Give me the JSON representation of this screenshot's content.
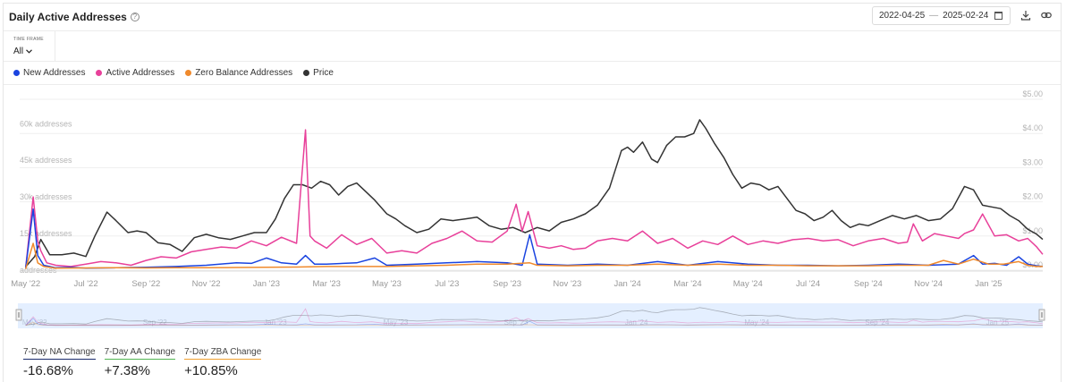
{
  "header": {
    "title": "Daily Active Addresses",
    "help_icon": "help-circle-icon",
    "date_start": "2022-04-25",
    "date_sep": "—",
    "date_end": "2025-02-24",
    "calendar_icon": "calendar-icon",
    "download_icon": "download-icon",
    "link_icon": "link-icon"
  },
  "time_frame": {
    "label": "TIME FRAME",
    "value": "All"
  },
  "legend": [
    {
      "name": "New Addresses",
      "color": "#1a44e0"
    },
    {
      "name": "Active Addresses",
      "color": "#e8409a"
    },
    {
      "name": "Zero Balance Addresses",
      "color": "#f08a2c"
    },
    {
      "name": "Price",
      "color": "#333333"
    }
  ],
  "stats": [
    {
      "label": "7-Day NA Change",
      "value": "-16.68%",
      "color": "#1a2a6c"
    },
    {
      "label": "7-Day AA Change",
      "value": "+7.38%",
      "color": "#52b552"
    },
    {
      "label": "7-Day ZBA Change",
      "value": "+10.85%",
      "color": "#f0a030"
    }
  ],
  "chart_data": {
    "type": "line",
    "title": "Daily Active Addresses",
    "x_tick_labels": [
      "May '22",
      "Jul '22",
      "Sep '22",
      "Nov '22",
      "Jan '23",
      "Mar '23",
      "May '23",
      "Jul '23",
      "Sep '23",
      "Nov '23",
      "Jan '24",
      "Mar '24",
      "May '24",
      "Jul '24",
      "Sep '24",
      "Nov '24",
      "Jan '25"
    ],
    "x_tick_months": [
      0,
      2,
      4,
      6,
      8,
      10,
      12,
      14,
      16,
      18,
      20,
      22,
      24,
      26,
      28,
      30,
      32
    ],
    "x_range_months": [
      -0.2,
      33.8
    ],
    "y_left_ticks": [
      "addresses",
      "15k addresses",
      "30k addresses",
      "45k addresses",
      "60k addresses"
    ],
    "y_left_values": [
      0,
      15000,
      30000,
      45000,
      60000
    ],
    "y_left_range": [
      0,
      70000
    ],
    "y_right_ticks": [
      "$0.00",
      "$1.00",
      "$2.00",
      "$3.00",
      "$4.00",
      "$5.00"
    ],
    "y_right_values": [
      0,
      1,
      2,
      3,
      4,
      5
    ],
    "y_right_range": [
      0,
      5
    ],
    "navigator_tick_labels": [
      "May '22",
      "Sep '22",
      "Jan '23",
      "May '23",
      "Sep '23",
      "Jan '24",
      "May '24",
      "Sep '24",
      "Jan '25"
    ],
    "navigator_tick_months": [
      0,
      4,
      8,
      12,
      16,
      20,
      24,
      28,
      32
    ],
    "series": [
      {
        "name": "Price",
        "axis": "right",
        "color": "#333333",
        "x": [
          0,
          0.3,
          0.5,
          0.8,
          1.2,
          1.6,
          2.0,
          2.3,
          2.7,
          3.0,
          3.4,
          3.7,
          4.0,
          4.4,
          4.8,
          5.2,
          5.6,
          6.0,
          6.4,
          6.8,
          7.2,
          7.6,
          8.0,
          8.3,
          8.6,
          8.9,
          9.2,
          9.5,
          9.8,
          10.1,
          10.4,
          10.7,
          11.0,
          11.3,
          11.6,
          12.0,
          12.3,
          12.6,
          13.0,
          13.4,
          13.8,
          14.2,
          14.6,
          15.0,
          15.4,
          15.8,
          16.2,
          16.6,
          17.0,
          17.4,
          17.8,
          18.2,
          18.6,
          19.0,
          19.4,
          19.8,
          20.0,
          20.2,
          20.5,
          20.8,
          21.0,
          21.3,
          21.6,
          21.9,
          22.2,
          22.4,
          22.6,
          22.9,
          23.2,
          23.5,
          23.8,
          24.1,
          24.4,
          24.7,
          25.0,
          25.3,
          25.6,
          25.9,
          26.2,
          26.5,
          26.8,
          27.1,
          27.4,
          27.7,
          28.0,
          28.4,
          28.8,
          29.2,
          29.6,
          30.0,
          30.4,
          30.8,
          31.2,
          31.5,
          31.8,
          32.1,
          32.4,
          32.7,
          33.0,
          33.3,
          33.6,
          33.8
        ],
        "y": [
          0.1,
          0.4,
          0.9,
          0.45,
          0.45,
          0.5,
          0.4,
          1.0,
          1.7,
          1.45,
          1.1,
          1.15,
          1.1,
          0.8,
          0.75,
          0.55,
          0.95,
          1.05,
          0.95,
          0.9,
          1.0,
          1.1,
          1.1,
          1.5,
          2.1,
          2.5,
          2.5,
          2.4,
          2.6,
          2.5,
          2.2,
          2.45,
          2.55,
          2.3,
          2.05,
          1.65,
          1.5,
          1.3,
          1.1,
          1.2,
          1.5,
          1.45,
          1.5,
          1.55,
          1.3,
          1.2,
          1.25,
          1.1,
          1.25,
          1.15,
          1.4,
          1.5,
          1.65,
          1.9,
          2.4,
          3.5,
          3.6,
          3.45,
          3.75,
          3.25,
          3.15,
          3.65,
          3.9,
          3.9,
          4.0,
          4.4,
          4.15,
          3.7,
          3.3,
          2.8,
          2.4,
          2.55,
          2.5,
          2.35,
          2.45,
          2.1,
          1.75,
          1.65,
          1.45,
          1.55,
          1.75,
          1.45,
          1.25,
          1.35,
          1.3,
          1.45,
          1.6,
          1.5,
          1.6,
          1.45,
          1.5,
          1.8,
          2.45,
          2.35,
          1.9,
          1.85,
          1.8,
          1.6,
          1.45,
          1.2,
          1.05,
          0.9
        ]
      },
      {
        "name": "Active Addresses",
        "axis": "left",
        "color": "#e8409a",
        "x": [
          0,
          0.25,
          0.4,
          0.5,
          0.7,
          1.0,
          1.5,
          2.0,
          2.5,
          3.0,
          3.5,
          4.0,
          4.5,
          5.0,
          5.5,
          6.0,
          6.5,
          7.0,
          7.5,
          8.0,
          8.5,
          9.0,
          9.3,
          9.45,
          9.6,
          10.0,
          10.5,
          11.0,
          11.5,
          12.0,
          12.5,
          13.0,
          13.5,
          14.0,
          14.5,
          15.0,
          15.5,
          16.0,
          16.3,
          16.5,
          16.7,
          17.0,
          17.4,
          17.8,
          18.2,
          18.6,
          19.0,
          19.5,
          20.0,
          20.5,
          21.0,
          21.5,
          22.0,
          22.5,
          23.0,
          23.5,
          24.0,
          24.5,
          25.0,
          25.5,
          26.0,
          26.5,
          27.0,
          27.5,
          28.0,
          28.5,
          29.0,
          29.3,
          29.5,
          29.8,
          30.2,
          30.6,
          31.0,
          31.2,
          31.5,
          31.8,
          32.2,
          32.6,
          33.0,
          33.3,
          33.6,
          33.8
        ],
        "y": [
          1000,
          30000,
          12000,
          8000,
          3000,
          2000,
          1500,
          2500,
          3500,
          3000,
          2000,
          4000,
          5500,
          5000,
          7500,
          8500,
          9500,
          9000,
          12000,
          10000,
          13500,
          11000,
          57500,
          14000,
          12000,
          9000,
          14500,
          10500,
          13000,
          7000,
          8000,
          7000,
          11000,
          13000,
          16000,
          12000,
          11500,
          16000,
          27000,
          16000,
          24000,
          10000,
          9000,
          10000,
          8500,
          9000,
          12000,
          13000,
          12000,
          16000,
          11000,
          13000,
          9000,
          12000,
          10500,
          14000,
          10500,
          12000,
          11000,
          12500,
          13000,
          12000,
          12500,
          10000,
          12000,
          13000,
          11000,
          11500,
          19000,
          12000,
          15000,
          14000,
          13000,
          15000,
          16500,
          23000,
          14000,
          14500,
          12000,
          13000,
          9500,
          6500
        ]
      },
      {
        "name": "New Addresses",
        "axis": "left",
        "color": "#1a44e0",
        "x": [
          0,
          0.25,
          0.4,
          0.6,
          1.0,
          1.5,
          2.0,
          3.0,
          4.0,
          5.0,
          6.0,
          7.0,
          7.5,
          8.0,
          8.5,
          9.0,
          9.3,
          9.6,
          10.0,
          11.0,
          11.6,
          12.0,
          13.0,
          14.0,
          15.0,
          16.0,
          16.5,
          16.75,
          17.0,
          18.0,
          19.0,
          20.0,
          21.0,
          22.0,
          23.0,
          24.0,
          25.0,
          26.0,
          27.0,
          28.0,
          29.0,
          30.0,
          31.0,
          31.5,
          31.8,
          32.2,
          32.6,
          33.0,
          33.3,
          33.6,
          33.8
        ],
        "y": [
          1000,
          25000,
          6000,
          2000,
          1000,
          1200,
          800,
          1000,
          1200,
          1500,
          2000,
          3000,
          2800,
          5000,
          3000,
          2500,
          6000,
          2500,
          2500,
          3000,
          5000,
          2000,
          2500,
          3000,
          3500,
          3000,
          2000,
          14500,
          2500,
          2000,
          2500,
          2000,
          3500,
          2000,
          3500,
          2500,
          2000,
          2000,
          1800,
          2000,
          2500,
          2000,
          2500,
          6000,
          2500,
          2800,
          2000,
          5500,
          2500,
          1800,
          1500
        ]
      },
      {
        "name": "Zero Balance Addresses",
        "axis": "left",
        "color": "#f08a2c",
        "x": [
          0,
          0.25,
          0.4,
          0.6,
          1.0,
          2.0,
          3.0,
          4.0,
          5.0,
          6.0,
          7.0,
          8.0,
          9.0,
          10.0,
          11.0,
          12.0,
          13.0,
          14.0,
          15.0,
          16.0,
          16.75,
          17.0,
          18.0,
          19.0,
          20.0,
          21.0,
          22.0,
          23.0,
          24.0,
          25.0,
          26.0,
          27.0,
          28.0,
          29.0,
          30.0,
          30.5,
          31.0,
          31.5,
          32.0,
          32.5,
          33.0,
          33.3,
          33.6,
          33.8
        ],
        "y": [
          500,
          11000,
          3000,
          1500,
          800,
          900,
          1000,
          900,
          1000,
          1000,
          1100,
          1200,
          1300,
          1500,
          1500,
          1500,
          1800,
          2000,
          2500,
          2500,
          3000,
          2000,
          1800,
          2000,
          2000,
          2500,
          2000,
          2500,
          2000,
          2000,
          1800,
          1800,
          1800,
          2000,
          2000,
          4000,
          2500,
          4500,
          2500,
          2500,
          3500,
          2000,
          1500,
          1500
        ]
      }
    ]
  }
}
